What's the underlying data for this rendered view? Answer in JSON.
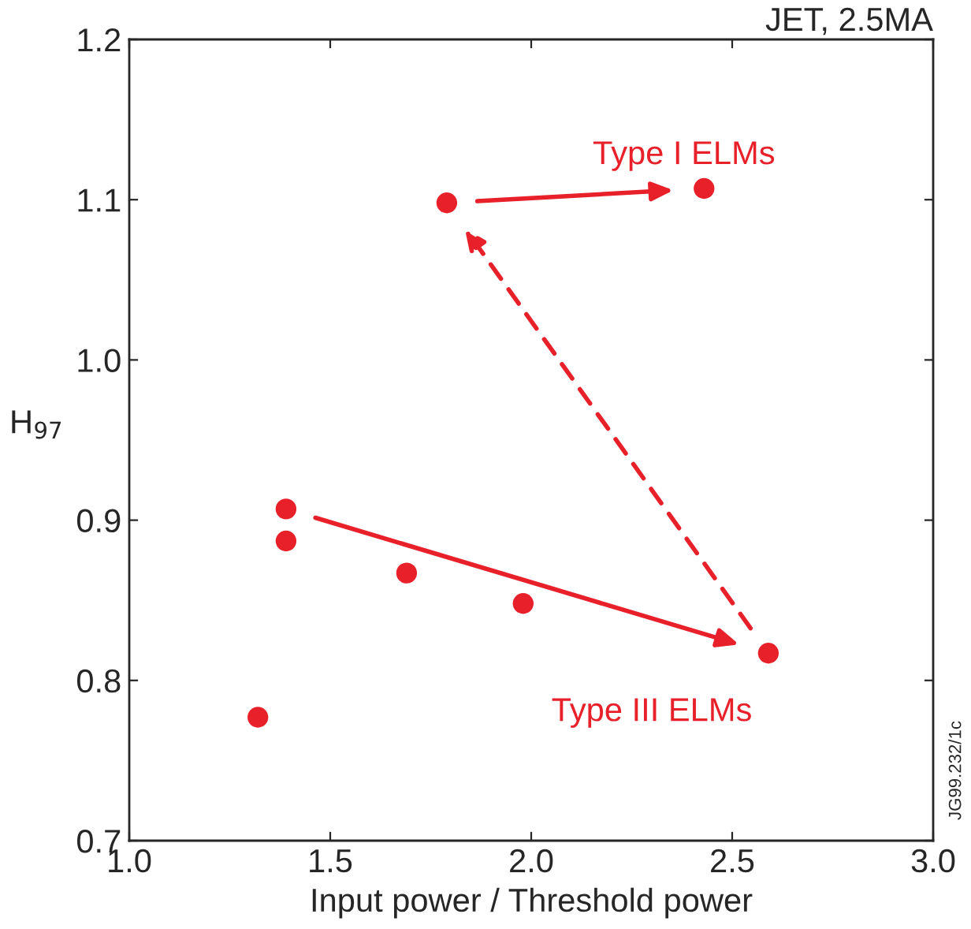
{
  "chart_data": {
    "type": "scatter",
    "title": "JET, 2.5MA",
    "xlabel": "Input power / Threshold power",
    "ylabel": "H$_{97}$",
    "xlim": [
      1.0,
      3.0
    ],
    "xticks": [
      {
        "value": 1,
        "label": "1.0"
      },
      1.5,
      {
        "value": 2,
        "label": "2.0"
      },
      2.5,
      {
        "value": 3,
        "label": "3.0"
      }
    ],
    "ylim": [
      0.7,
      1.2
    ],
    "yticks": [
      0.7,
      0.8,
      0.9,
      {
        "value": 1,
        "label": "1.0"
      },
      1.1,
      1.2
    ],
    "grid": false,
    "marker": "circle",
    "series": [
      {
        "color": "#e8202a",
        "x": [
          1.32,
          1.39,
          1.39,
          1.69,
          1.98,
          2.59,
          1.79,
          2.43
        ],
        "values": [
          0.777,
          0.907,
          0.887,
          0.867,
          0.848,
          0.817,
          1.098,
          1.107
        ]
      }
    ],
    "annotations": [
      "Type I ELMs",
      "Type III ELMs",
      "JG99.232/1c"
    ]
  }
}
